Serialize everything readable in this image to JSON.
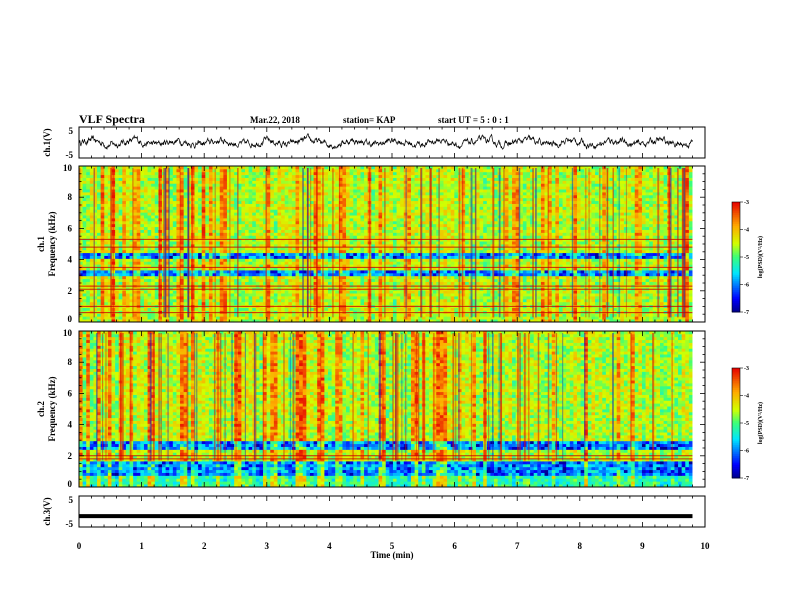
{
  "header": {
    "title": "VLF Spectra",
    "date": "Mar.22, 2018",
    "station": "station= KAP",
    "start_ut": "start UT =  5 : 0 : 1"
  },
  "chart_data": [
    {
      "type": "line",
      "name": "ch1-waveform",
      "ylabel": "ch.1(V)",
      "ylim": [
        -5,
        5
      ],
      "yticks": [
        "5",
        "-5"
      ],
      "xlim": [
        0,
        10
      ],
      "approx_range": [
        -2,
        2
      ]
    },
    {
      "type": "heatmap",
      "name": "ch1-spectrogram",
      "ylabel": "ch.1\nFrequency (kHz)",
      "ylim": [
        0,
        10
      ],
      "yticks": [
        "0",
        "2",
        "4",
        "6",
        "8",
        "10"
      ],
      "xlim": [
        0,
        10
      ],
      "colorbar": {
        "label": "log(PSD)(V²/Hz)",
        "range": [
          -7,
          -3
        ],
        "ticks": [
          "-3",
          "-4",
          "-5",
          "-6",
          "-7"
        ]
      },
      "horizontal_lines_khz": [
        0.6,
        1.0,
        2.1,
        2.3,
        3.5,
        4.8,
        5.3
      ],
      "dark_bands_khz": [
        [
          2.9,
          3.4
        ],
        [
          4.0,
          4.4
        ]
      ]
    },
    {
      "type": "heatmap",
      "name": "ch2-spectrogram",
      "ylabel": "ch.2\nFrequency (kHz)",
      "ylim": [
        0,
        10
      ],
      "yticks": [
        "0",
        "2",
        "4",
        "6",
        "8",
        "10"
      ],
      "xlim": [
        0,
        10
      ],
      "colorbar": {
        "label": "log(PSD)(V²/Hz)",
        "range": [
          -7,
          -3
        ],
        "ticks": [
          "-3",
          "-4",
          "-5",
          "-6",
          "-7"
        ]
      },
      "horizontal_lines_khz": [
        1.8,
        2.0
      ],
      "dark_bands_khz": [
        [
          2.4,
          3.0
        ],
        [
          0.8,
          1.6
        ]
      ]
    },
    {
      "type": "line",
      "name": "ch3-waveform",
      "ylabel": "ch.3(V)",
      "ylim": [
        -5,
        5
      ],
      "yticks": [
        "5",
        "-5"
      ],
      "xlim": [
        0,
        10
      ],
      "constant_value": -1.5
    }
  ],
  "xaxis": {
    "label": "Time (min)",
    "ticks": [
      "0",
      "1",
      "2",
      "3",
      "4",
      "5",
      "6",
      "7",
      "8",
      "9",
      "10"
    ],
    "data_end_min": 9.8
  }
}
